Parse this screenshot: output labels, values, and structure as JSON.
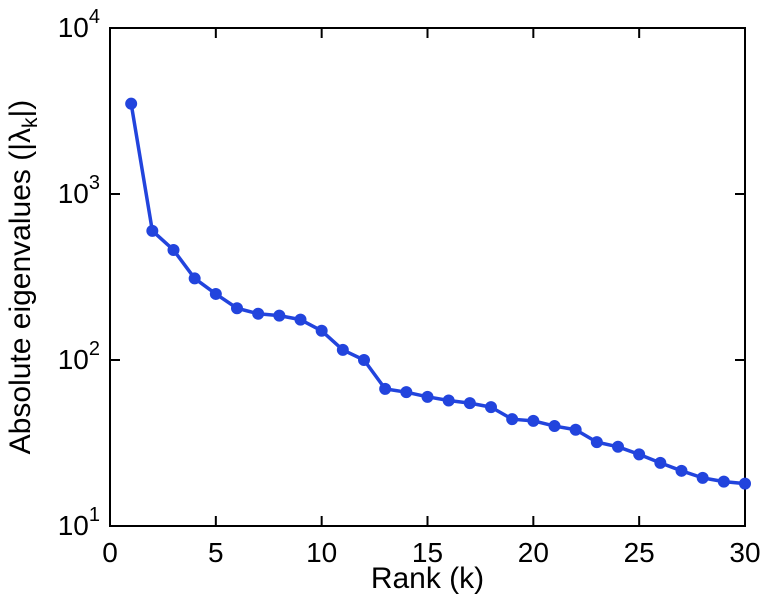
{
  "chart_data": {
    "type": "line",
    "title": "",
    "xlabel": "Rank (k)",
    "ylabel": "Absolute eigenvalues (|λk|)",
    "ylabel_rich": [
      {
        "t": "Absolute eigenvalues (|λ",
        "sub": false
      },
      {
        "t": "k",
        "sub": true
      },
      {
        "t": "|)",
        "sub": false
      }
    ],
    "x": [
      1,
      2,
      3,
      4,
      5,
      6,
      7,
      8,
      9,
      10,
      11,
      12,
      13,
      14,
      15,
      16,
      17,
      18,
      19,
      20,
      21,
      22,
      23,
      24,
      25,
      26,
      27,
      28,
      29,
      30
    ],
    "values": [
      3500,
      600,
      460,
      310,
      250,
      205,
      190,
      185,
      175,
      150,
      115,
      100,
      67,
      64,
      60,
      57,
      55,
      52,
      44,
      43,
      40,
      38,
      32,
      30,
      27,
      24,
      21.5,
      19.5,
      18.5,
      18
    ],
    "xlim": [
      0,
      30
    ],
    "ylim": [
      10,
      10000
    ],
    "yscale": "log",
    "xticks": [
      0,
      5,
      10,
      15,
      20,
      25,
      30
    ],
    "xtick_labels": [
      "0",
      "5",
      "10",
      "15",
      "20",
      "25",
      "30"
    ],
    "ytick_exponents": [
      1,
      2,
      3,
      4
    ],
    "ytick_base": "10",
    "line_color": "#2244dd",
    "axis_color": "#000000",
    "background_color": "#ffffff",
    "grid": false,
    "legend_position": "none",
    "marker": "circle"
  }
}
